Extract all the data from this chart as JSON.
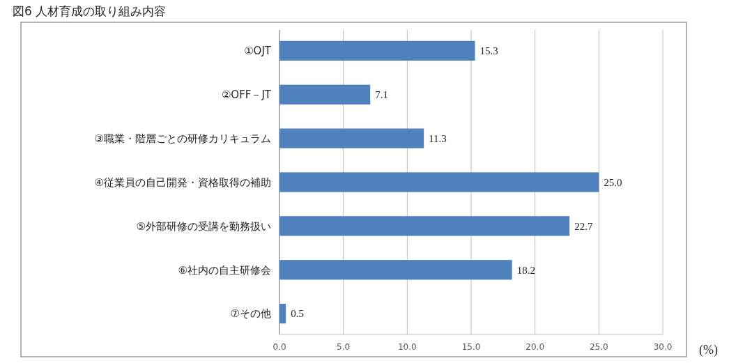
{
  "chart_data": {
    "type": "bar",
    "orientation": "horizontal",
    "title": "図6 人材育成の取り組み内容",
    "xlabel": "(%)",
    "categories": [
      "①OJT",
      "②OFF－JT",
      "③職業・階層ごとの研修カリキュラム",
      "④従業員の自己開発・資格取得の補助",
      "⑤外部研修の受講を勤務扱い",
      "⑥社内の自主研修会",
      "⑦その他"
    ],
    "values": [
      15.3,
      7.1,
      11.3,
      25.0,
      22.7,
      18.2,
      0.5
    ],
    "value_labels": [
      "15.3",
      "7.1",
      "11.3",
      "25.0",
      "22.7",
      "18.2",
      "0.5"
    ],
    "color": "#4f81bd",
    "xlim": [
      0,
      30
    ],
    "xticks": [
      {
        "value": 0,
        "label": "0.0"
      },
      {
        "value": 5,
        "label": "5.0"
      },
      {
        "value": 10,
        "label": "10.0"
      },
      {
        "value": 15,
        "label": "15.0"
      },
      {
        "value": 20,
        "label": "20.0"
      },
      {
        "value": 25,
        "label": "25.0"
      },
      {
        "value": 30,
        "label": "30.0"
      }
    ],
    "grid": "x"
  }
}
